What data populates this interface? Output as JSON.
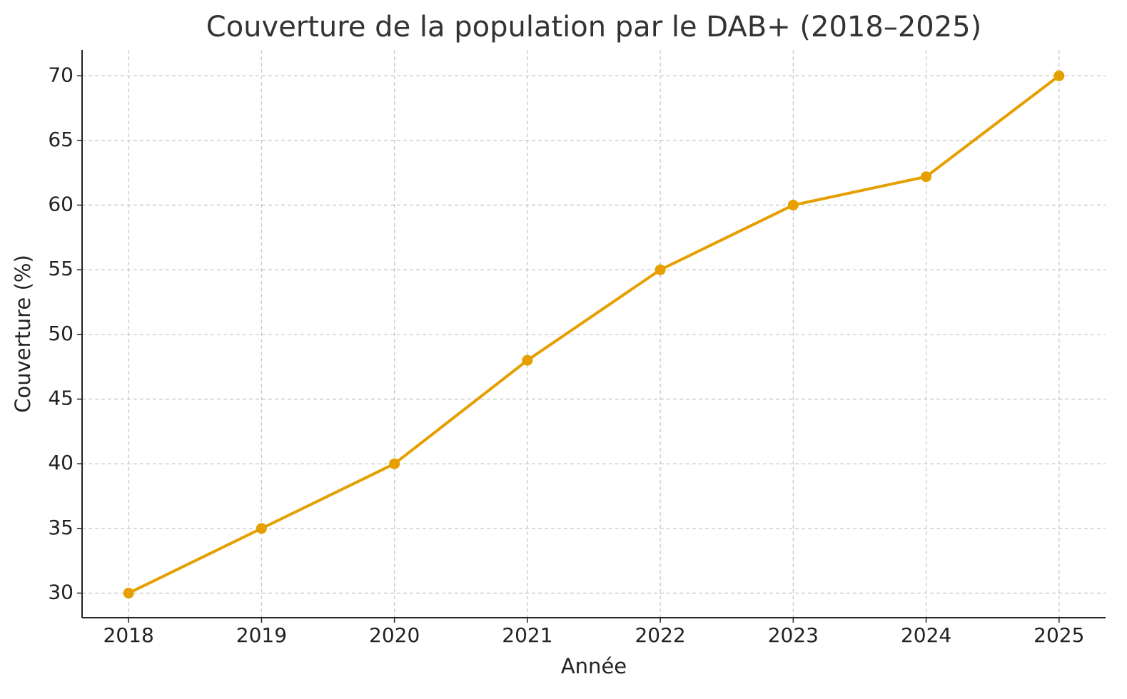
{
  "chart_data": {
    "type": "line",
    "title": "Couverture de la population par le DAB+ (2018–2025)",
    "xlabel": "Année",
    "ylabel": "Couverture (%)",
    "x": [
      2018,
      2019,
      2020,
      2021,
      2022,
      2023,
      2024,
      2025
    ],
    "series": [
      {
        "name": "Couverture",
        "color": "#e69f00",
        "values": [
          30,
          35,
          40,
          48,
          55,
          60,
          62.2,
          70
        ]
      }
    ],
    "xlim": [
      2017.65,
      2025.35
    ],
    "ylim": [
      28.1,
      72
    ],
    "xticks": [
      2018,
      2019,
      2020,
      2021,
      2022,
      2023,
      2024,
      2025
    ],
    "yticks": [
      30,
      35,
      40,
      45,
      50,
      55,
      60,
      65,
      70
    ],
    "grid": true
  }
}
